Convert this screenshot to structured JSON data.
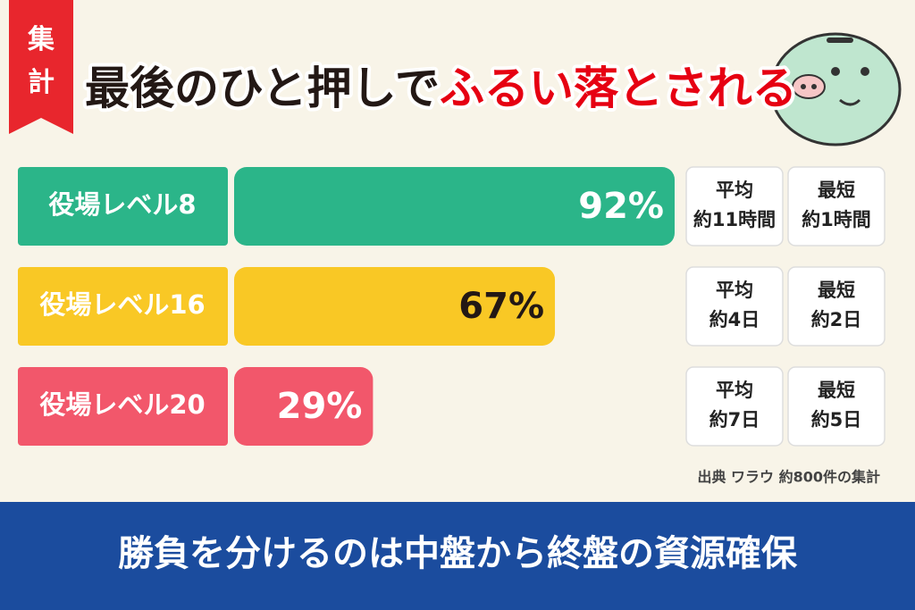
{
  "badge": "集計",
  "footer": "勝負を分けるのは中盤から終盤の資源確保",
  "chart_data": {
    "type": "bar",
    "orientation": "horizontal",
    "title_parts": [
      {
        "text": "最後のひと押しで",
        "color": "#231815"
      },
      {
        "text": "ふるい落とされる",
        "color": "#e60012"
      }
    ],
    "categories": [
      "役場レベル8",
      "役場レベル16",
      "役場レベル20"
    ],
    "values": [
      92,
      67,
      29
    ],
    "value_labels": [
      "92%",
      "67%",
      "29%"
    ],
    "colors": [
      "#2bb589",
      "#f9c825",
      "#f2576b"
    ],
    "value_label_colors": [
      "#ffffff",
      "#231815",
      "#ffffff"
    ],
    "average_label": "平均",
    "average": [
      "約11時間",
      "約4日",
      "約7日"
    ],
    "shortest_label": "最短",
    "shortest": [
      "約1時間",
      "約2日",
      "約5日"
    ],
    "source": "出典 ワラウ 約800件の集計"
  }
}
